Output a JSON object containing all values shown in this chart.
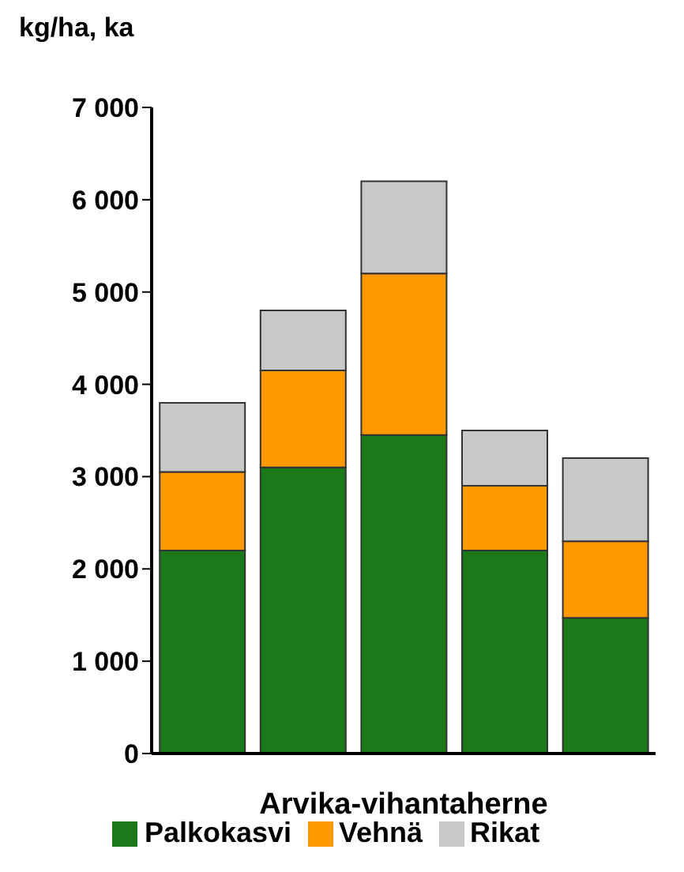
{
  "chart_data": {
    "type": "bar",
    "stacked": true,
    "ylabel": "kg/ha, ka",
    "xlabel": "Arvika-vihantaherne",
    "categories": [
      null,
      null,
      null,
      null,
      null
    ],
    "series": [
      {
        "name": "Palkokasvi",
        "color": "#1a7a1a",
        "values": [
          2200,
          3100,
          3450,
          2200,
          1470
        ]
      },
      {
        "name": "Vehnä",
        "color": "#ff9900",
        "values": [
          850,
          1050,
          1750,
          700,
          830
        ]
      },
      {
        "name": "Rikat",
        "color": "#c8c8c8",
        "values": [
          750,
          650,
          1000,
          600,
          900
        ]
      }
    ],
    "ylim": [
      0,
      7000
    ],
    "yticks": [
      0,
      {
        "value": 1000,
        "label": "1 000"
      },
      {
        "value": 2000,
        "label": "2 000"
      },
      {
        "value": 3000,
        "label": "3 000"
      },
      {
        "value": 4000,
        "label": "4 000"
      },
      {
        "value": 5000,
        "label": "5 000"
      },
      {
        "value": 6000,
        "label": "6 000"
      },
      {
        "value": 7000,
        "label": "7 000"
      }
    ],
    "grid": false,
    "legend": "bottom"
  }
}
